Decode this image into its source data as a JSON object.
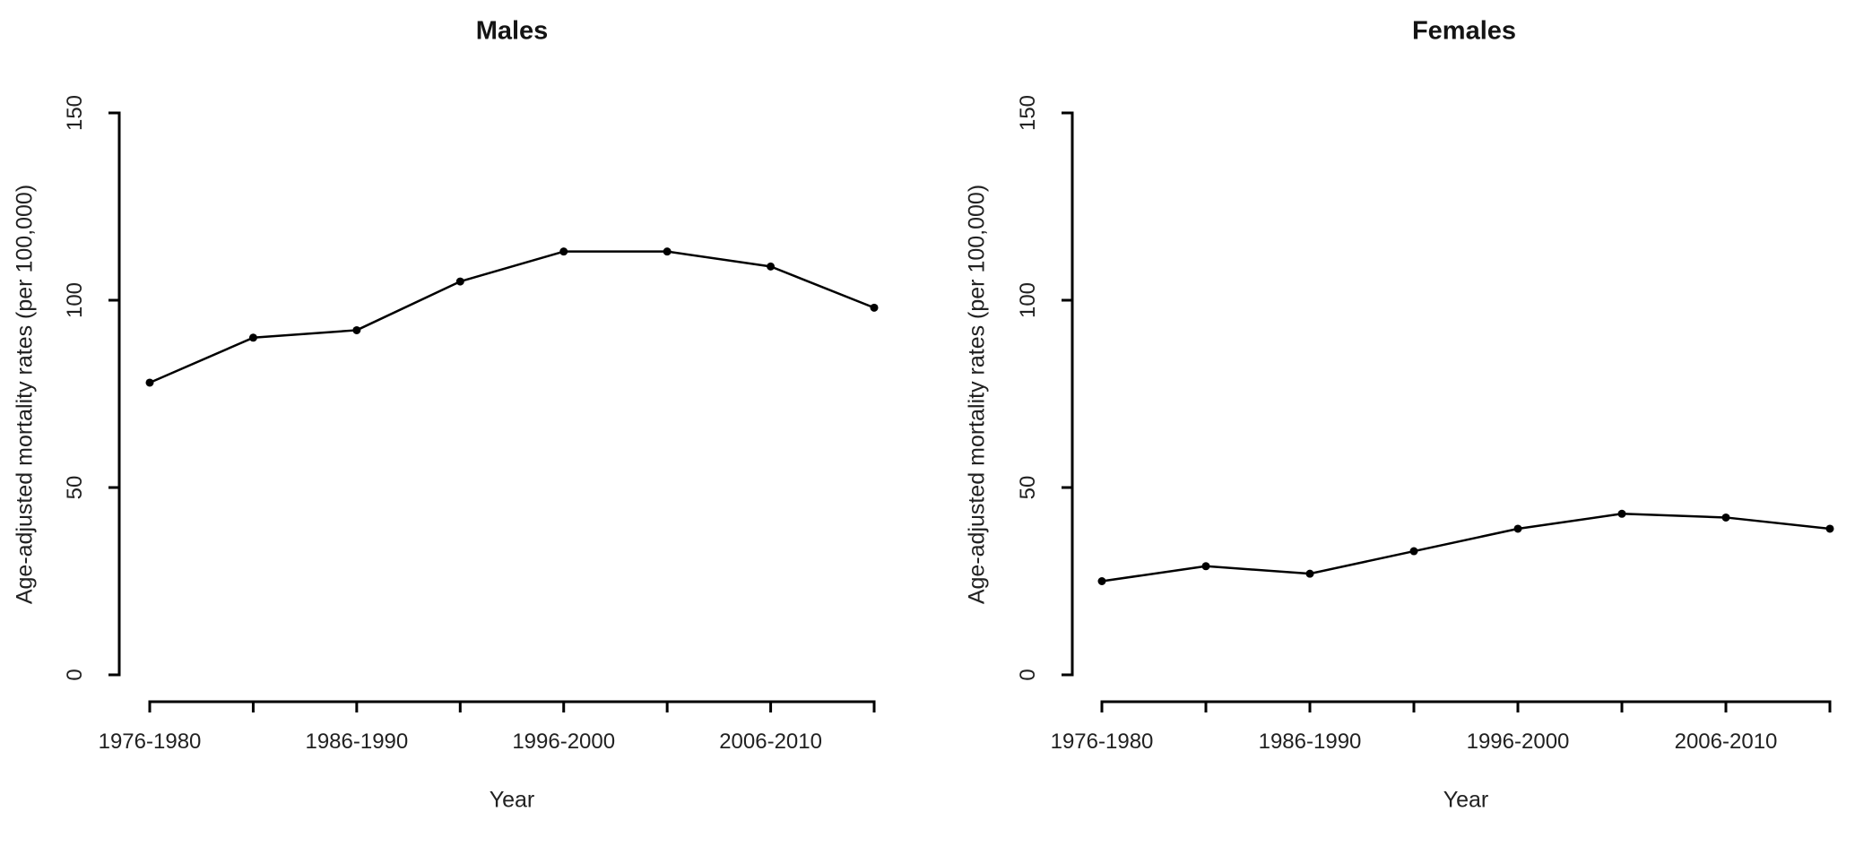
{
  "figure": {
    "background_color": "#ffffff",
    "axis_color": "#000000",
    "text_color": "#212121"
  },
  "chart_data": [
    {
      "type": "line",
      "title": "Males",
      "xlabel": "Year",
      "ylabel": "Age-adjusted mortality rates (per 100,000)",
      "x_tick_labels": [
        "1976-1980",
        "",
        "1986-1990",
        "",
        "1996-2000",
        "",
        "2006-2010",
        ""
      ],
      "values": [
        78,
        90,
        92,
        105,
        113,
        113,
        109,
        98
      ],
      "yticks": [
        0,
        50,
        100,
        150
      ],
      "ylim": [
        0,
        150
      ],
      "series_color": "#000000",
      "marker": "filled-circle",
      "grid": false,
      "legend": "none"
    },
    {
      "type": "line",
      "title": "Females",
      "xlabel": "Year",
      "ylabel": "Age-adjusted mortality rates (per 100,000)",
      "x_tick_labels": [
        "1976-1980",
        "",
        "1986-1990",
        "",
        "1996-2000",
        "",
        "2006-2010",
        ""
      ],
      "values": [
        25,
        29,
        27,
        33,
        39,
        43,
        42,
        39
      ],
      "yticks": [
        0,
        50,
        100,
        150
      ],
      "ylim": [
        0,
        150
      ],
      "series_color": "#000000",
      "marker": "filled-circle",
      "grid": false,
      "legend": "none"
    }
  ]
}
